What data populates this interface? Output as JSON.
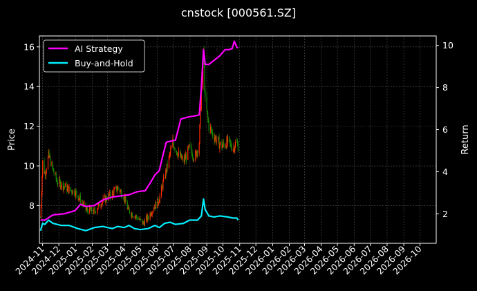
{
  "chart_data": {
    "type": "line",
    "title": "cnstock [000561.SZ]",
    "xlabel": "",
    "ylabel": "Price",
    "y2label": "Return",
    "grid": true,
    "legend_position": "top-left",
    "x_ticks": [
      "2024-11",
      "2024-12",
      "2025-01",
      "2025-02",
      "2025-03",
      "2025-04",
      "2025-05",
      "2025-06",
      "2025-07",
      "2025-08",
      "2025-09",
      "2025-10",
      "2025-11",
      "2025-12",
      "2026-01",
      "2026-02",
      "2026-03",
      "2026-04",
      "2026-05",
      "2026-06",
      "2026-07",
      "2026-08",
      "2026-09",
      "2026-10"
    ],
    "xlim": [
      "2024-10-26",
      "2026-10-31"
    ],
    "ylim": [
      6.1,
      16.55
    ],
    "y_ticks": [
      8,
      10,
      12,
      14,
      16
    ],
    "y2lim": [
      0.6,
      10.45
    ],
    "y2_ticks": [
      2,
      4,
      6,
      8,
      10
    ],
    "candle_colors": {
      "up": "#ff2a00",
      "down": "#1a8a00"
    },
    "price_series": {
      "name": "",
      "dates": [
        "2024-10-28",
        "2024-11-01",
        "2024-11-05",
        "2024-11-12",
        "2024-11-20",
        "2024-11-28",
        "2024-12-10",
        "2024-12-20",
        "2024-12-31",
        "2025-01-10",
        "2025-01-20",
        "2025-02-05",
        "2025-02-15",
        "2025-02-28",
        "2025-03-10",
        "2025-03-20",
        "2025-03-31",
        "2025-04-08",
        "2025-04-15",
        "2025-04-25",
        "2025-05-06",
        "2025-05-15",
        "2025-05-25",
        "2025-06-03",
        "2025-06-10",
        "2025-06-20",
        "2025-06-30",
        "2025-07-10",
        "2025-07-20",
        "2025-07-31",
        "2025-08-10",
        "2025-08-18",
        "2025-08-22",
        "2025-08-26",
        "2025-08-29",
        "2025-09-05",
        "2025-09-12",
        "2025-09-20",
        "2025-09-28",
        "2025-10-10",
        "2025-10-20",
        "2025-10-25",
        "2025-10-29"
      ],
      "values": [
        7.4,
        10.2,
        9.6,
        10.5,
        9.8,
        9.2,
        9.0,
        8.8,
        8.7,
        8.3,
        7.8,
        7.7,
        8.1,
        8.4,
        8.6,
        8.9,
        8.5,
        7.8,
        7.6,
        7.4,
        7.1,
        7.4,
        7.9,
        8.2,
        8.9,
        10.0,
        11.2,
        10.6,
        10.2,
        10.9,
        10.4,
        11.2,
        13.8,
        15.8,
        13.2,
        12.0,
        11.6,
        11.3,
        11.0,
        11.2,
        10.9,
        11.2,
        11.0
      ]
    },
    "series": [
      {
        "name": "AI Strategy",
        "color": "#ff00ff",
        "dates": [
          "2024-10-28",
          "2024-11-05",
          "2024-11-20",
          "2024-12-10",
          "2024-12-31",
          "2025-01-10",
          "2025-01-20",
          "2025-02-05",
          "2025-02-20",
          "2025-03-10",
          "2025-03-25",
          "2025-04-10",
          "2025-04-25",
          "2025-05-10",
          "2025-05-20",
          "2025-05-28",
          "2025-06-05",
          "2025-06-12",
          "2025-06-18",
          "2025-06-25",
          "2025-07-05",
          "2025-07-15",
          "2025-07-28",
          "2025-08-10",
          "2025-08-18",
          "2025-08-22",
          "2025-08-26",
          "2025-08-29",
          "2025-09-05",
          "2025-09-15",
          "2025-09-25",
          "2025-10-05",
          "2025-10-12",
          "2025-10-18",
          "2025-10-22",
          "2025-10-27",
          "2025-10-29"
        ],
        "values": [
          1.7,
          1.7,
          1.95,
          2.0,
          2.15,
          2.45,
          2.35,
          2.4,
          2.65,
          2.8,
          2.85,
          2.9,
          3.05,
          3.1,
          3.5,
          3.85,
          4.05,
          4.8,
          5.4,
          5.45,
          5.5,
          6.5,
          6.6,
          6.65,
          6.7,
          8.0,
          9.8,
          9.1,
          9.1,
          9.3,
          9.5,
          9.8,
          9.8,
          9.85,
          10.2,
          9.9,
          9.9
        ]
      },
      {
        "name": "Buy-and-Hold",
        "color": "#00f0ff",
        "dates": [
          "2024-10-28",
          "2024-11-01",
          "2024-11-05",
          "2024-11-12",
          "2024-11-20",
          "2024-12-05",
          "2024-12-20",
          "2025-01-05",
          "2025-01-20",
          "2025-02-05",
          "2025-02-20",
          "2025-03-10",
          "2025-03-20",
          "2025-04-01",
          "2025-04-10",
          "2025-04-20",
          "2025-05-01",
          "2025-05-15",
          "2025-05-28",
          "2025-06-05",
          "2025-06-15",
          "2025-06-25",
          "2025-07-05",
          "2025-07-20",
          "2025-07-31",
          "2025-08-15",
          "2025-08-22",
          "2025-08-26",
          "2025-08-29",
          "2025-09-05",
          "2025-09-15",
          "2025-09-25",
          "2025-10-10",
          "2025-10-20",
          "2025-10-27",
          "2025-10-29"
        ],
        "values": [
          1.2,
          1.55,
          1.5,
          1.7,
          1.55,
          1.45,
          1.45,
          1.3,
          1.2,
          1.35,
          1.4,
          1.3,
          1.4,
          1.35,
          1.45,
          1.3,
          1.25,
          1.3,
          1.45,
          1.35,
          1.55,
          1.6,
          1.5,
          1.55,
          1.7,
          1.7,
          1.9,
          2.7,
          2.2,
          1.9,
          1.85,
          1.9,
          1.85,
          1.8,
          1.8,
          1.7
        ]
      }
    ]
  }
}
